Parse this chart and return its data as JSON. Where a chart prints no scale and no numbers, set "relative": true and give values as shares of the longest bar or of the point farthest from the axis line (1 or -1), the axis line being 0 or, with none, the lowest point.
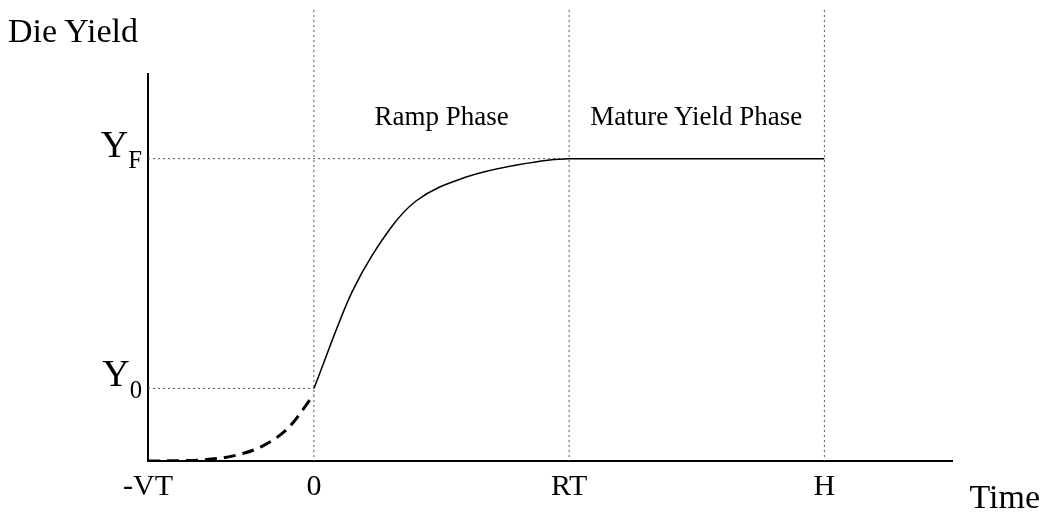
{
  "chart_data": {
    "type": "line",
    "ylabel": "Die Yield",
    "xlabel": "Time",
    "relative": true,
    "categories": [
      "-VT",
      null,
      null,
      null,
      null,
      null,
      null,
      null,
      null,
      null,
      null,
      null,
      null,
      "0",
      null,
      null,
      null,
      null,
      null,
      null,
      null,
      null,
      null,
      null,
      null,
      null,
      null,
      null,
      null,
      null,
      null,
      null,
      null,
      "RT",
      null,
      null,
      null,
      null,
      null,
      null,
      null,
      null,
      null,
      null,
      null,
      null,
      null,
      null,
      null,
      null,
      null,
      null,
      null,
      "H",
      null,
      null,
      null,
      null,
      null,
      null,
      null,
      null,
      null,
      null
    ],
    "series": [
      {
        "color": "#000000",
        "line_style": "dashed",
        "values": [
          0,
          null,
          null,
          null,
          0.003,
          null,
          null,
          0.02,
          null,
          0.05,
          null,
          0.11,
          null,
          0.22,
          null,
          null,
          null,
          null,
          null,
          null,
          null,
          null,
          null,
          null,
          null,
          null,
          null,
          null,
          null,
          null,
          null,
          null,
          null,
          null,
          null,
          null,
          null,
          null,
          null,
          null,
          null,
          null,
          null,
          null,
          null,
          null,
          null,
          null,
          null,
          null,
          null,
          null,
          null,
          null,
          null,
          null,
          null,
          null,
          null,
          null,
          null,
          null,
          null,
          null
        ]
      },
      {
        "color": "#000000",
        "line_style": "solid",
        "values": [
          null,
          null,
          null,
          null,
          null,
          null,
          null,
          null,
          null,
          null,
          null,
          null,
          null,
          0.24,
          null,
          null,
          0.56,
          null,
          null,
          0.77,
          null,
          0.86,
          null,
          null,
          null,
          0.94,
          null,
          null,
          null,
          0.98,
          null,
          null,
          null,
          1,
          null,
          null,
          null,
          null,
          null,
          null,
          null,
          null,
          null,
          1,
          null,
          null,
          null,
          null,
          null,
          null,
          null,
          null,
          null,
          1,
          null,
          null,
          null,
          null,
          null,
          null,
          null,
          null,
          null,
          null
        ]
      }
    ],
    "ref_lines": [
      {
        "axis": "x",
        "value": "0"
      },
      {
        "axis": "x",
        "value": "RT"
      },
      {
        "axis": "x",
        "value": "H"
      },
      {
        "axis": "y",
        "value": 0.24,
        "label": "Y$_{0}$"
      },
      {
        "axis": "y",
        "value": 1,
        "label": "Y$_{F}$"
      }
    ],
    "annotations": [
      "Ramp Phase",
      "Mature Yield Phase"
    ],
    "grid": false,
    "legend": false,
    "marker": "none"
  }
}
